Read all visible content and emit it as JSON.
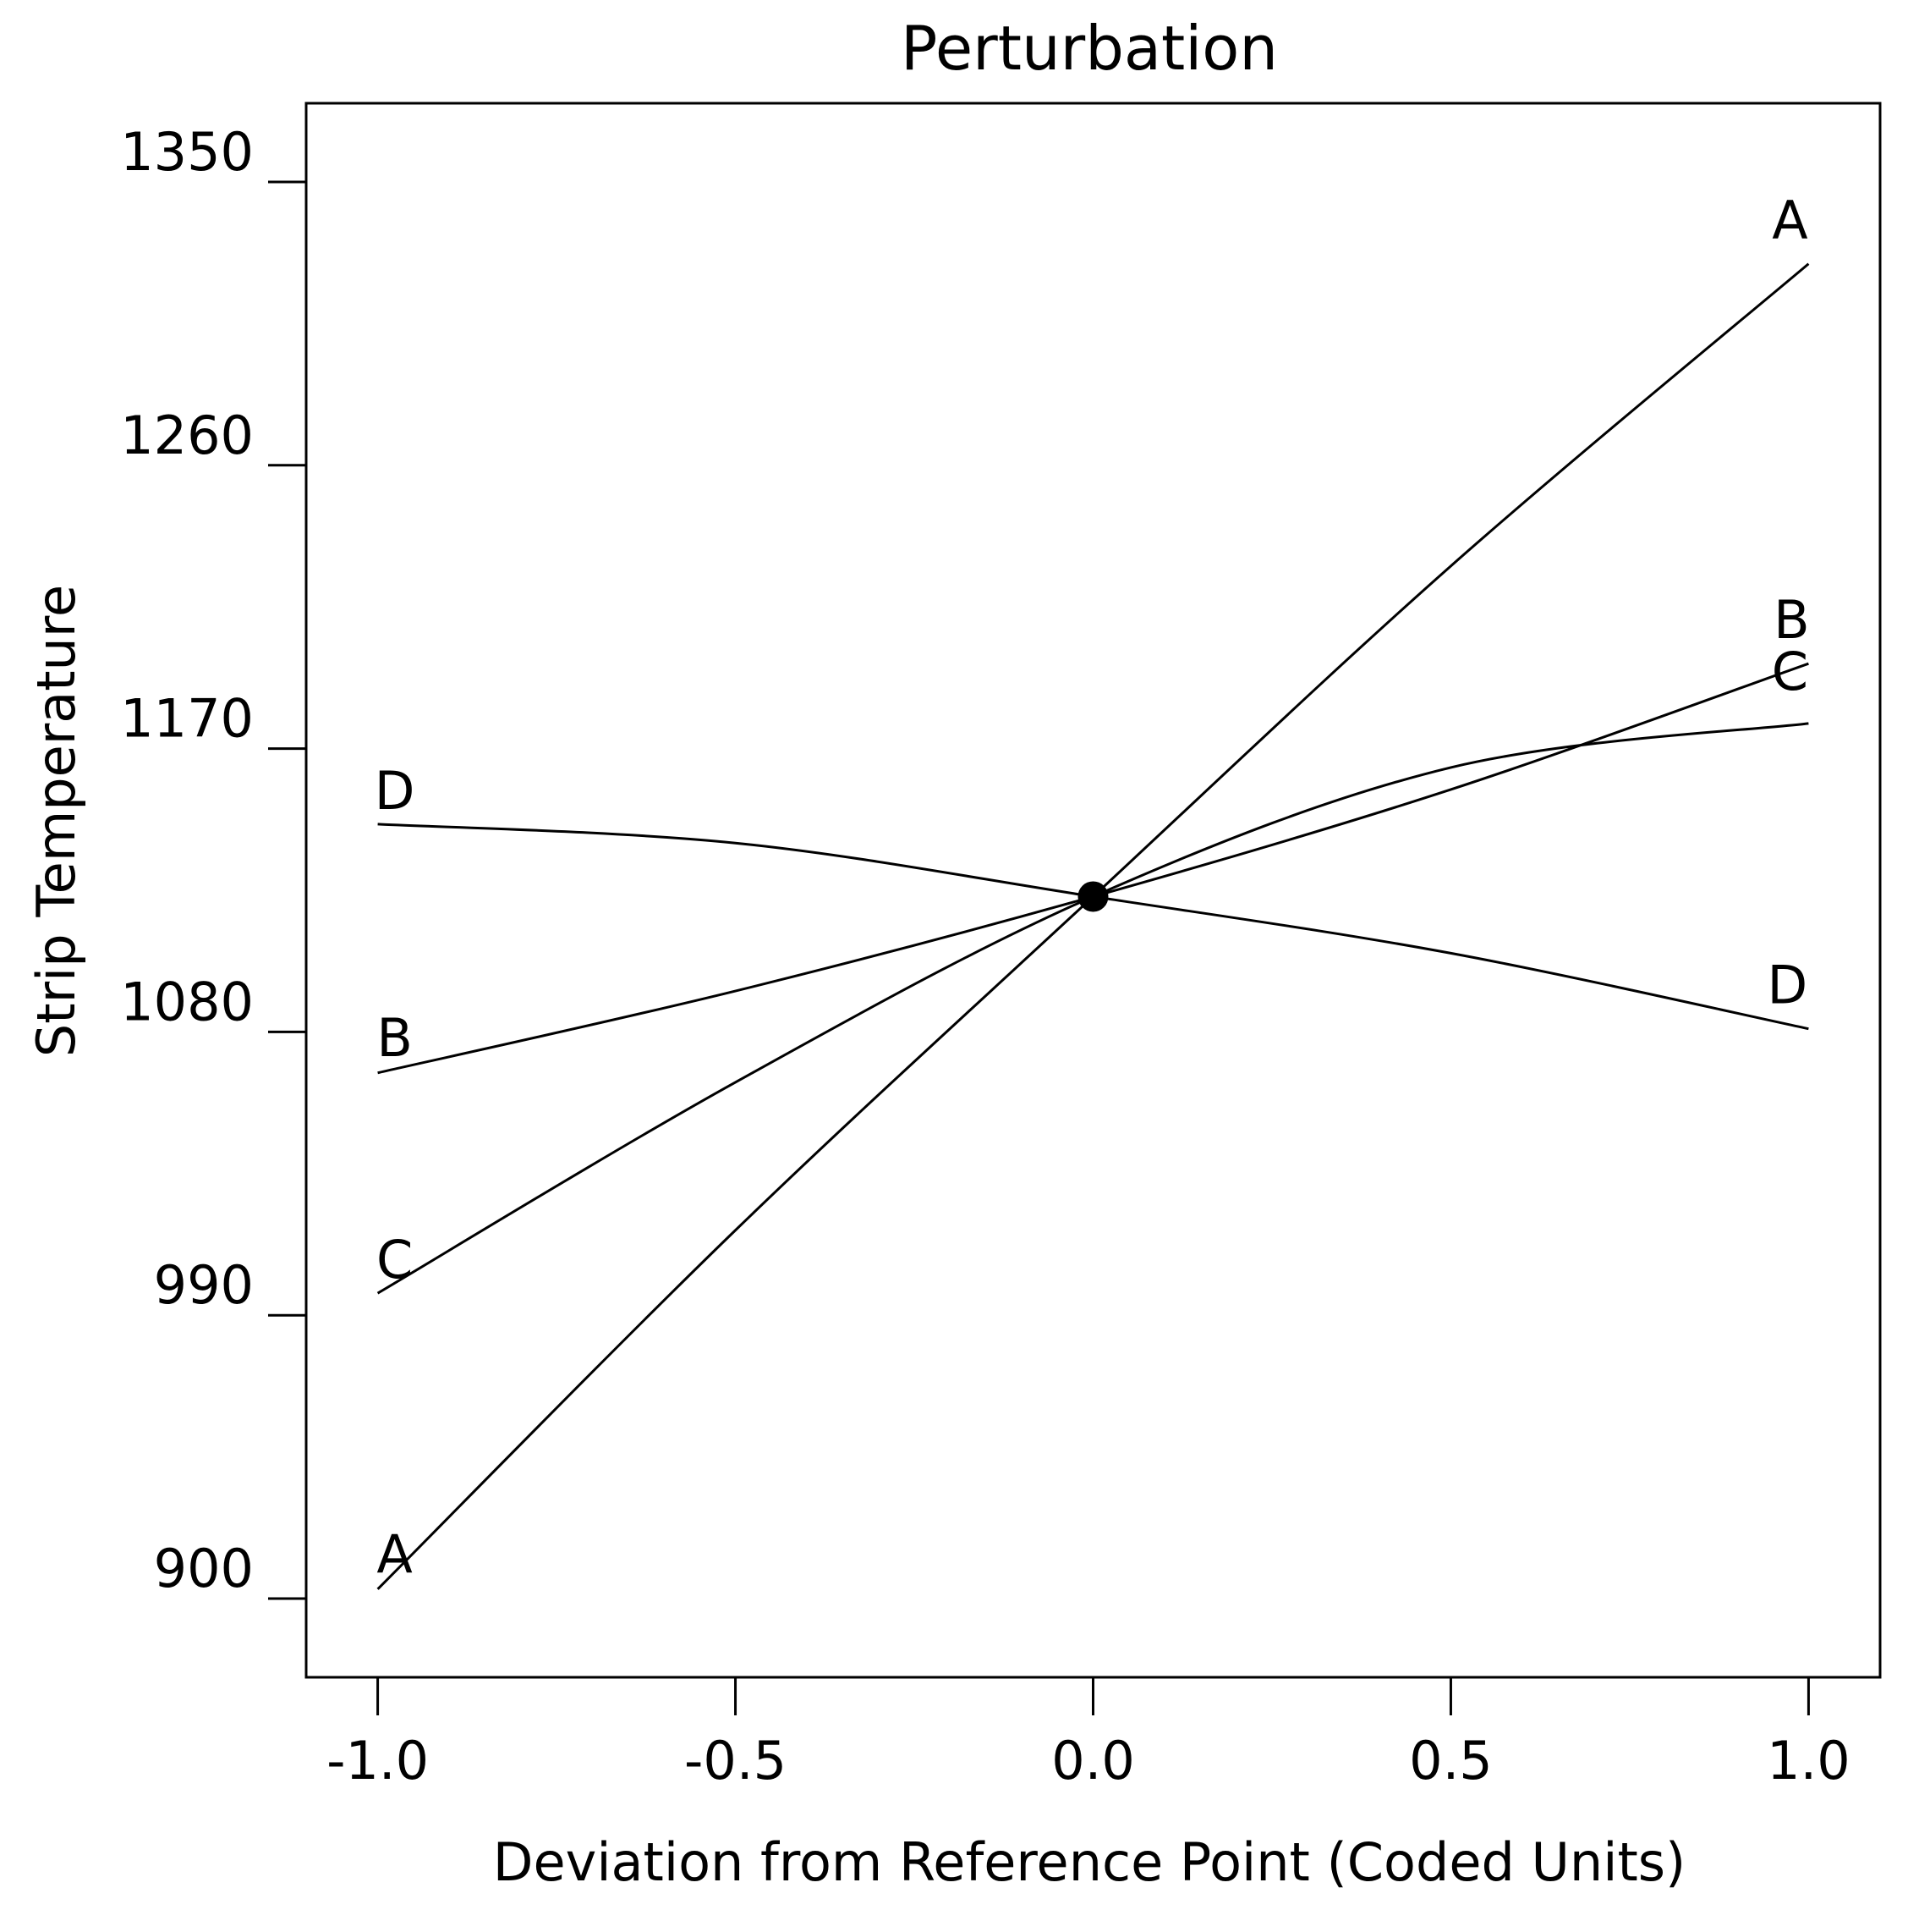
{
  "chart_data": {
    "type": "line",
    "title": "Perturbation",
    "xlabel": "Deviation from Reference Point (Coded Units)",
    "ylabel": "Strip Temperature",
    "xlim": [
      -1.1,
      1.1
    ],
    "ylim": [
      875,
      1375
    ],
    "x_ticks": [
      -1.0,
      -0.5,
      0.0,
      0.5,
      1.0
    ],
    "x_tick_labels": [
      "-1.0",
      "-0.5",
      "0.0",
      "0.5",
      "1.0"
    ],
    "y_ticks": [
      900,
      990,
      1080,
      1170,
      1260,
      1350
    ],
    "y_tick_labels": [
      "900",
      "990",
      "1080",
      "1170",
      "1260",
      "1350"
    ],
    "reference_point": {
      "x": 0.0,
      "y": 1123
    },
    "grid": false,
    "legend": "none",
    "line_color": "#000000",
    "series": [
      {
        "name": "A",
        "x": [
          -1.0,
          -0.5,
          0.0,
          0.5,
          1.0
        ],
        "y": [
          903,
          1017,
          1123,
          1228,
          1324
        ],
        "start_label": "A",
        "end_label": "A"
      },
      {
        "name": "B",
        "x": [
          -1.0,
          -0.5,
          0.0,
          0.5,
          1.0
        ],
        "y": [
          1067,
          1093,
          1123,
          1157,
          1197
        ],
        "start_label": "B",
        "end_label": "B"
      },
      {
        "name": "C",
        "x": [
          -1.0,
          -0.5,
          0.0,
          0.5,
          1.0
        ],
        "y": [
          997,
          1064,
          1123,
          1164,
          1178
        ],
        "start_label": "C",
        "end_label": "C"
      },
      {
        "name": "D",
        "x": [
          -1.0,
          -0.5,
          0.0,
          0.5,
          1.0
        ],
        "y": [
          1146,
          1140,
          1123,
          1105,
          1081
        ],
        "start_label": "D",
        "end_label": "D"
      }
    ]
  }
}
